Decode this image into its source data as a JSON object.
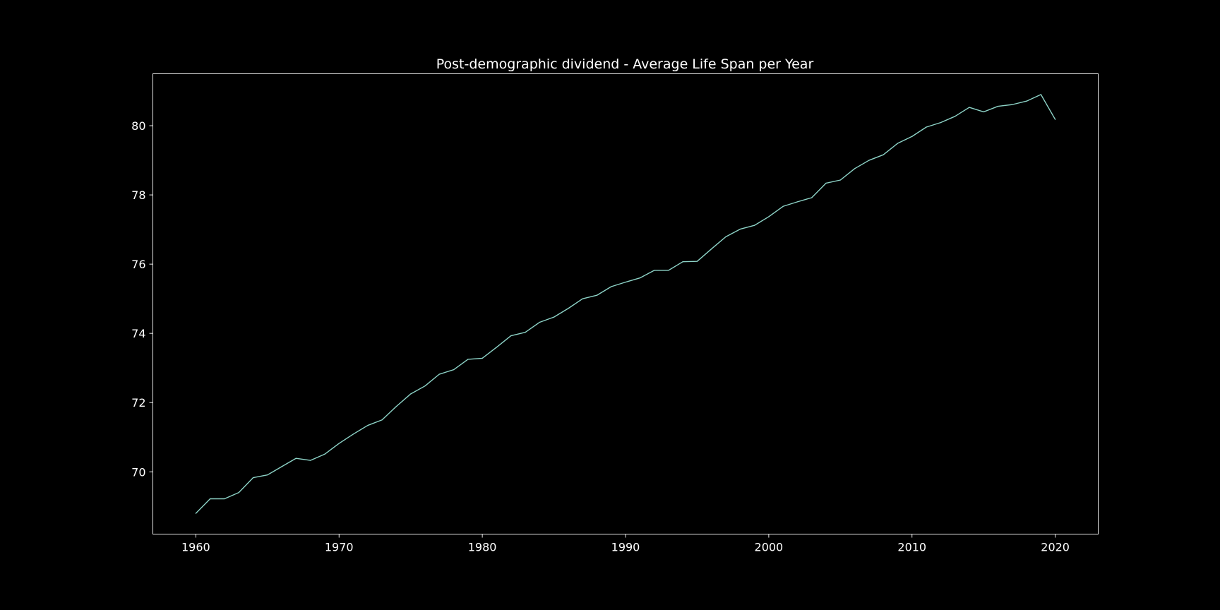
{
  "chart_data": {
    "type": "line",
    "title": "Post-demographic dividend - Average Life Span per Year",
    "xlabel": "",
    "ylabel": "",
    "xlim": [
      1957,
      2023
    ],
    "ylim": [
      68.2,
      81.5
    ],
    "x_ticks": [
      1960,
      1970,
      1980,
      1990,
      2000,
      2010,
      2020
    ],
    "y_ticks": [
      70,
      72,
      74,
      76,
      78,
      80
    ],
    "grid": false,
    "legend": "none",
    "background_color": "#000000",
    "text_color": "#ffffff",
    "axes_color": "#ffffff",
    "series": [
      {
        "color": "#8dd3c7",
        "x": [
          1960,
          1961,
          1962,
          1963,
          1964,
          1965,
          1966,
          1967,
          1968,
          1969,
          1970,
          1971,
          1972,
          1973,
          1974,
          1975,
          1976,
          1977,
          1978,
          1979,
          1980,
          1981,
          1982,
          1983,
          1984,
          1985,
          1986,
          1987,
          1988,
          1989,
          1990,
          1991,
          1992,
          1993,
          1994,
          1995,
          1996,
          1997,
          1998,
          1999,
          2000,
          2001,
          2002,
          2003,
          2004,
          2005,
          2006,
          2007,
          2008,
          2009,
          2010,
          2011,
          2012,
          2013,
          2014,
          2015,
          2016,
          2017,
          2018,
          2019,
          2020
        ],
        "values": [
          68.8,
          69.22,
          69.22,
          69.4,
          69.83,
          69.91,
          70.15,
          70.39,
          70.33,
          70.51,
          70.82,
          71.09,
          71.34,
          71.5,
          71.89,
          72.25,
          72.48,
          72.82,
          72.95,
          73.25,
          73.28,
          73.6,
          73.93,
          74.03,
          74.32,
          74.47,
          74.72,
          75.0,
          75.1,
          75.35,
          75.48,
          75.6,
          75.82,
          75.82,
          76.07,
          76.08,
          76.44,
          76.79,
          77.01,
          77.12,
          77.37,
          77.67,
          77.8,
          77.92,
          78.34,
          78.43,
          78.76,
          79.0,
          79.16,
          79.49,
          79.69,
          79.96,
          80.09,
          80.27,
          80.53,
          80.4,
          80.56,
          80.61,
          80.71,
          80.9,
          80.18
        ]
      }
    ]
  }
}
